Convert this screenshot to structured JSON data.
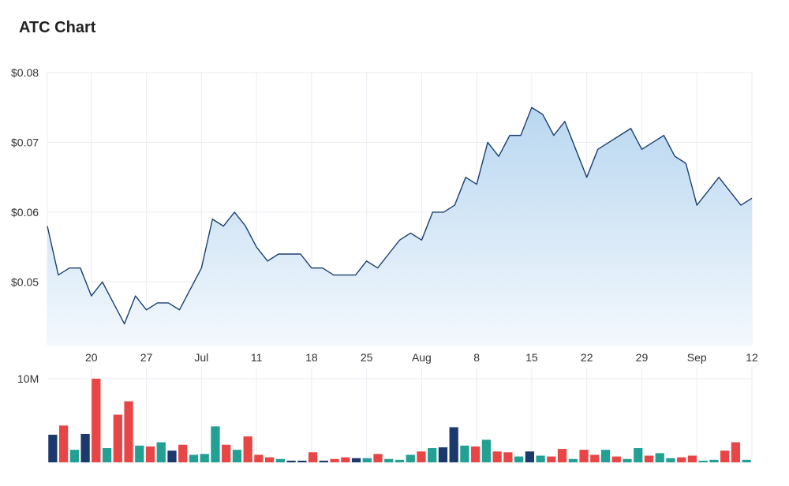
{
  "title": "ATC Chart",
  "colors": {
    "line": "#1a3f73",
    "area_top": "#b9d7f0",
    "area_bottom": "#f3f8fd",
    "grid": "#e9edf2",
    "vol_up": "#22a094",
    "vol_down": "#e84646",
    "vol_flat": "#1b3a6b"
  },
  "chart_data": [
    {
      "type": "area",
      "title": "ATC Chart",
      "xlabel": "",
      "ylabel": "",
      "x_ticks": [
        "20",
        "27",
        "Jul",
        "11",
        "18",
        "25",
        "Aug",
        "8",
        "15",
        "22",
        "29",
        "Sep",
        "12"
      ],
      "y_ticks": [
        "$0.05",
        "$0.06",
        "$0.07",
        "$0.08"
      ],
      "ylim": [
        0.041,
        0.08
      ],
      "grid": true,
      "series": [
        {
          "values": [
            0.058,
            0.051,
            0.052,
            0.052,
            0.048,
            0.05,
            0.047,
            0.044,
            0.048,
            0.046,
            0.047,
            0.047,
            0.046,
            0.049,
            0.052,
            0.059,
            0.058,
            0.06,
            0.058,
            0.055,
            0.053,
            0.054,
            0.054,
            0.054,
            0.052,
            0.052,
            0.051,
            0.051,
            0.051,
            0.053,
            0.052,
            0.054,
            0.056,
            0.057,
            0.056,
            0.06,
            0.06,
            0.061,
            0.065,
            0.064,
            0.07,
            0.068,
            0.071,
            0.071,
            0.075,
            0.074,
            0.071,
            0.073,
            0.069,
            0.065,
            0.069,
            0.07,
            0.071,
            0.072,
            0.069,
            0.07,
            0.071,
            0.068,
            0.067,
            0.061,
            0.063,
            0.065,
            0.063,
            0.061,
            0.062
          ]
        }
      ]
    },
    {
      "type": "bar",
      "title": "",
      "y_ticks": [
        "10M"
      ],
      "ylim": [
        0,
        10000000
      ],
      "values": [
        3300000,
        4400000,
        1500000,
        3400000,
        10000000,
        1700000,
        5700000,
        7300000,
        2000000,
        1900000,
        2400000,
        1400000,
        2100000,
        900000,
        1000000,
        4300000,
        2100000,
        1500000,
        3100000,
        900000,
        600000,
        400000,
        200000,
        200000,
        1200000,
        200000,
        400000,
        600000,
        500000,
        500000,
        1000000,
        400000,
        300000,
        900000,
        1300000,
        1700000,
        1800000,
        4200000,
        2000000,
        1900000,
        2700000,
        1300000,
        1200000,
        700000,
        1300000,
        800000,
        700000,
        1600000,
        400000,
        1500000,
        900000,
        1500000,
        700000,
        400000,
        1700000,
        800000,
        1100000,
        500000,
        600000,
        800000,
        200000,
        300000,
        1400000,
        2400000,
        300000
      ],
      "directions": [
        "flat",
        "down",
        "up",
        "flat",
        "down",
        "up",
        "down",
        "down",
        "up",
        "down",
        "up",
        "flat",
        "down",
        "up",
        "up",
        "up",
        "down",
        "up",
        "down",
        "down",
        "down",
        "up",
        "flat",
        "flat",
        "down",
        "flat",
        "down",
        "down",
        "flat",
        "up",
        "down",
        "up",
        "up",
        "up",
        "down",
        "up",
        "flat",
        "flat",
        "up",
        "down",
        "up",
        "down",
        "down",
        "up",
        "flat",
        "up",
        "down",
        "down",
        "up",
        "down",
        "down",
        "up",
        "down",
        "up",
        "up",
        "down",
        "up",
        "up",
        "down",
        "down",
        "up",
        "up",
        "down",
        "down",
        "up"
      ]
    }
  ]
}
